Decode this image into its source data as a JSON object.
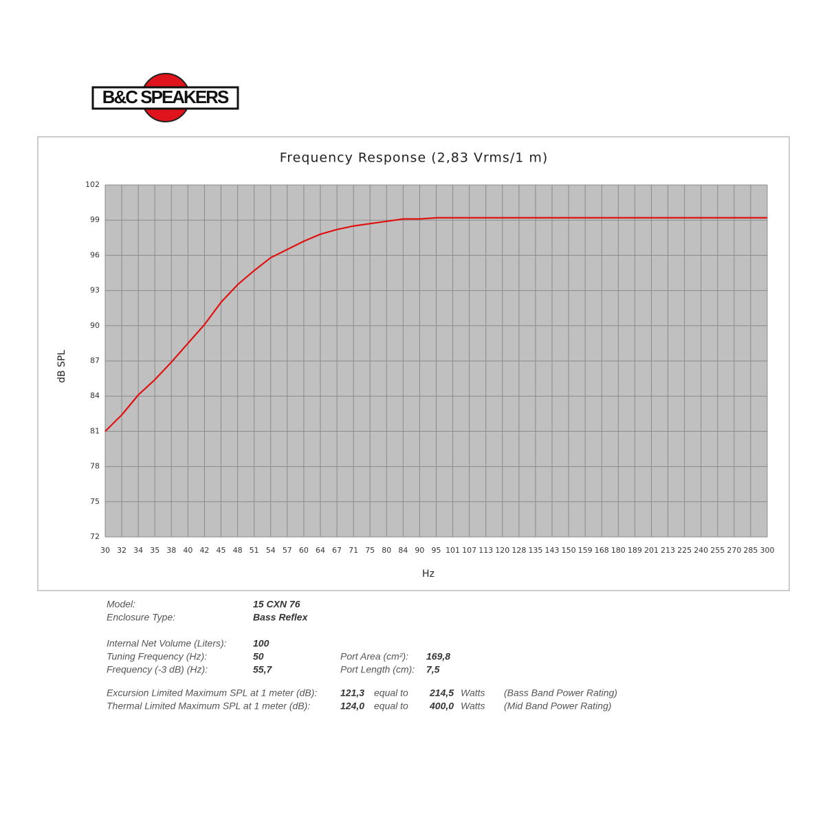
{
  "logo": "B&C SPEAKERS",
  "chart_data": {
    "type": "line",
    "title": "Frequency Response (2,83 Vrms/1 m)",
    "y_label": "dB SPL",
    "x_label": "Hz",
    "categories": [
      30,
      32,
      34,
      35,
      38,
      40,
      42,
      45,
      48,
      51,
      54,
      57,
      60,
      64,
      67,
      71,
      75,
      80,
      84,
      90,
      95,
      101,
      107,
      113,
      120,
      128,
      135,
      143,
      150,
      159,
      168,
      180,
      189,
      201,
      213,
      225,
      240,
      255,
      270,
      285,
      300
    ],
    "series": [
      {
        "name": "SPL",
        "color": "#e01010",
        "values": [
          81,
          82.4,
          84.1,
          85.4,
          86.9,
          88.5,
          90.1,
          92.0,
          93.5,
          94.7,
          95.8,
          96.5,
          97.2,
          97.8,
          98.2,
          98.5,
          98.7,
          98.9,
          99.1,
          99.1,
          99.2,
          99.2,
          99.2,
          99.2,
          99.2,
          99.2,
          99.2,
          99.2,
          99.2,
          99.2,
          99.2,
          99.2,
          99.2,
          99.2,
          99.2,
          99.2,
          99.2,
          99.2,
          99.2,
          99.2,
          99.2
        ]
      }
    ],
    "ylim": [
      72,
      102
    ],
    "yticks": [
      72,
      75,
      78,
      81,
      84,
      87,
      90,
      93,
      96,
      99,
      102
    ],
    "grid": true
  },
  "specs": {
    "model": {
      "label": "Model:",
      "value": "15 CXN 76"
    },
    "enclosure": {
      "label": "Enclosure Type:",
      "value": "Bass Reflex"
    },
    "volume": {
      "label": "Internal  Net Volume (Liters):",
      "value": "100"
    },
    "tuning": {
      "label": "Tuning Frequency (Hz):",
      "value": "50"
    },
    "f3": {
      "label": "Frequency (-3 dB) (Hz):",
      "value": "55,7"
    },
    "port_area": {
      "label": "Port Area (cm²):",
      "value": "169,8"
    },
    "port_length": {
      "label": "Port Length (cm):",
      "value": "7,5"
    },
    "excursion": {
      "label": "Excursion Limited Maximum SPL at 1 meter (dB):",
      "value": "121,3",
      "equal": "equal to",
      "power": "214,5",
      "unit": "Watts",
      "note": "(Bass Band Power Rating)"
    },
    "thermal": {
      "label": "Thermal Limited Maximum SPL at 1 meter (dB):",
      "value": "124,0",
      "equal": "equal to",
      "power": "400,0",
      "unit": "Watts",
      "note": "(Mid Band Power Rating)"
    }
  }
}
